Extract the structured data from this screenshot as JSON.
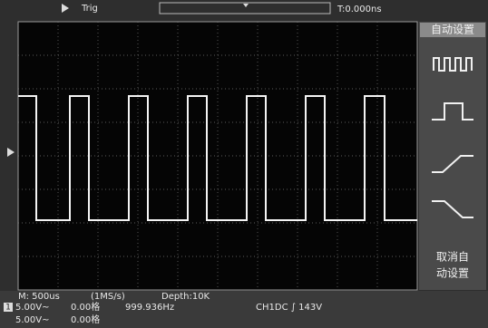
{
  "top": {
    "trig_label": "Trig",
    "time": "T:0.000ns"
  },
  "menu": {
    "title": "自动设置",
    "cancel_line1": "取消自",
    "cancel_line2": "动设置"
  },
  "bottom": {
    "timebase": "M: 500us",
    "rate": "(1MS/s)",
    "depth": "Depth:10K",
    "ch1_marker": "1",
    "ch1_scale": "5.00V~",
    "ch1_offset": "0.00格",
    "frequency": "999.936Hz",
    "trigger": "CH1DC ∫ 143V",
    "ch2_scale": "5.00V~",
    "ch2_offset": "0.00格"
  }
}
